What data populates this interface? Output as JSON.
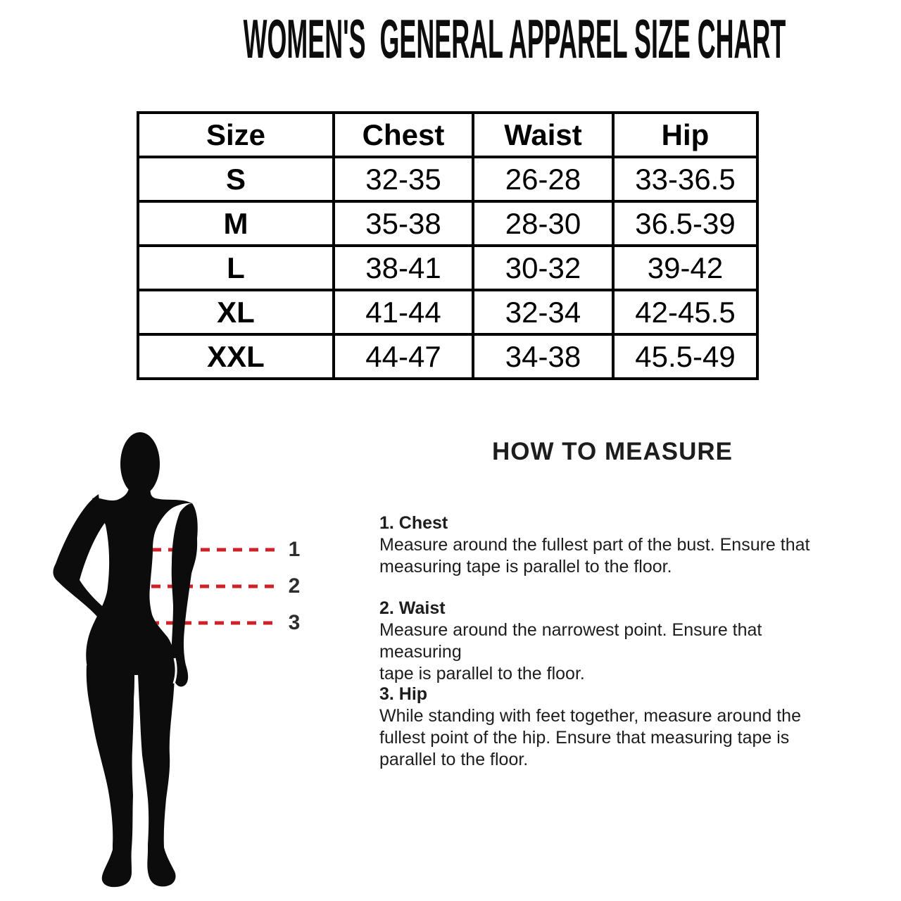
{
  "page": {
    "title": "WOMEN'S  GENERAL APPAREL SIZE CHART",
    "background": "#ffffff"
  },
  "size_chart": {
    "columns": [
      "Size",
      "Chest",
      "Waist",
      "Hip"
    ],
    "rows": [
      {
        "size": "S",
        "chest": "32-35",
        "waist": "26-28",
        "hip": "33-36.5"
      },
      {
        "size": "M",
        "chest": "35-38",
        "waist": "28-30",
        "hip": "36.5-39"
      },
      {
        "size": "L",
        "chest": "38-41",
        "waist": "30-32",
        "hip": "39-42"
      },
      {
        "size": "XL",
        "chest": "41-44",
        "waist": "32-34",
        "hip": "42-45.5"
      },
      {
        "size": "XXL",
        "chest": "44-47",
        "waist": "34-38",
        "hip": "45.5-49"
      }
    ]
  },
  "how_to_measure": {
    "heading": "HOW TO MEASURE",
    "sections": [
      {
        "label": "1. Chest",
        "lines": [
          "Measure around the fullest part of the bust. Ensure that",
          "measuring tape is parallel to the floor."
        ]
      },
      {
        "label": "2. Waist",
        "lines": [
          "Measure around the narrowest point. Ensure that measuring",
          "tape is parallel to the floor."
        ]
      },
      {
        "label": "3. Hip",
        "lines": [
          "While standing with feet together, measure around the",
          "fullest point of the hip. Ensure that measuring tape is",
          "parallel to the floor."
        ]
      }
    ]
  },
  "figure": {
    "markers": [
      "1",
      "2",
      "3"
    ],
    "line_color": "#cf2128",
    "silhouette_color": "#0c0c0c"
  }
}
